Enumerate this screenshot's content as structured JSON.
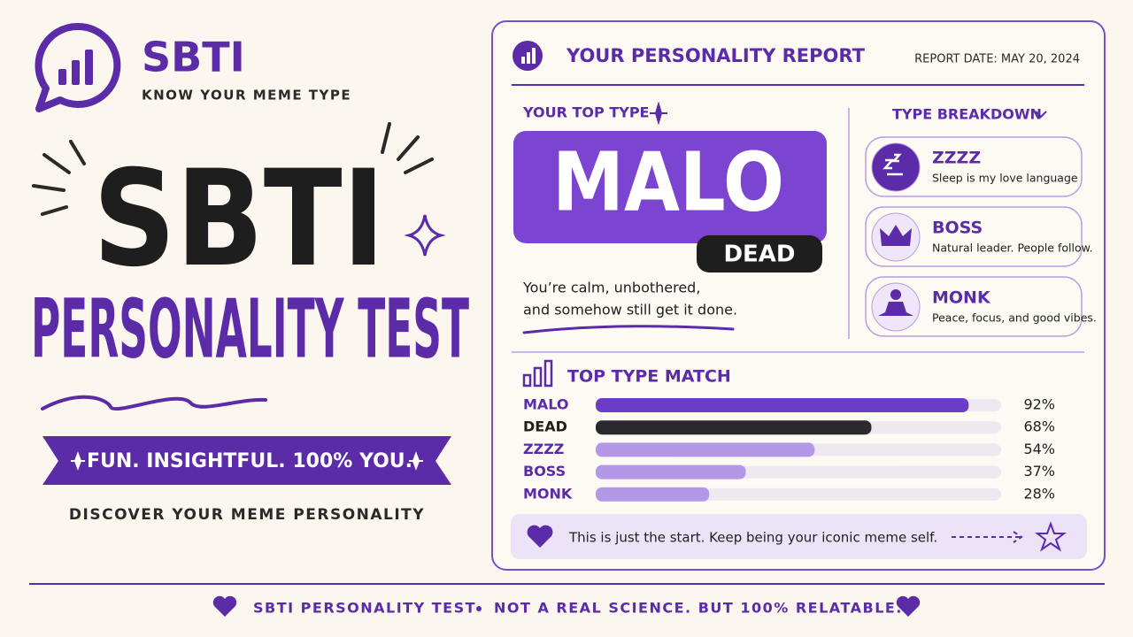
{
  "brand": {
    "name": "SBTI",
    "tagline": "KNOW YOUR MEME TYPE"
  },
  "hero": {
    "title": "SBTI",
    "subtitle": "PERSONALITY TEST",
    "banner": "FUN. INSIGHTFUL. 100% YOU.",
    "cta": "DISCOVER YOUR MEME PERSONALITY"
  },
  "report": {
    "title": "YOUR PERSONALITY REPORT",
    "date": "REPORT DATE: MAY 20, 2024",
    "top_type_label": "YOUR TOP TYPE",
    "top_type": "MALO",
    "secondary_type": "DEAD",
    "description": [
      "You’re calm, unbothered,",
      "and somehow still get it done."
    ],
    "breakdown_title": "TYPE BREAKDOWN",
    "breakdown": [
      {
        "name": "ZZZZ",
        "text": "Sleep is my love language"
      },
      {
        "name": "BOSS",
        "text": "Natural leader. People follow."
      },
      {
        "name": "MONK",
        "text": "Peace, focus, and good vibes."
      }
    ],
    "note": "This is just the start. Keep being your iconic meme self."
  },
  "chart_data": {
    "type": "bar",
    "title": "TOP TYPE MATCH",
    "categories": [
      "MALO",
      "DEAD",
      "ZZZZ",
      "BOSS",
      "MONK"
    ],
    "values": [
      92,
      68,
      54,
      37,
      28
    ],
    "value_labels": [
      "92%",
      "68%",
      "54%",
      "37%",
      "28%"
    ],
    "colors": [
      "#6a3cc7",
      "#2a2a2e",
      "#b597e8",
      "#b597e8",
      "#b597e8"
    ],
    "xlim": [
      0,
      100
    ]
  },
  "footer": {
    "left": "SBTI PERSONALITY TEST",
    "right": "NOT A REAL SCIENCE. BUT 100% RELATABLE."
  }
}
